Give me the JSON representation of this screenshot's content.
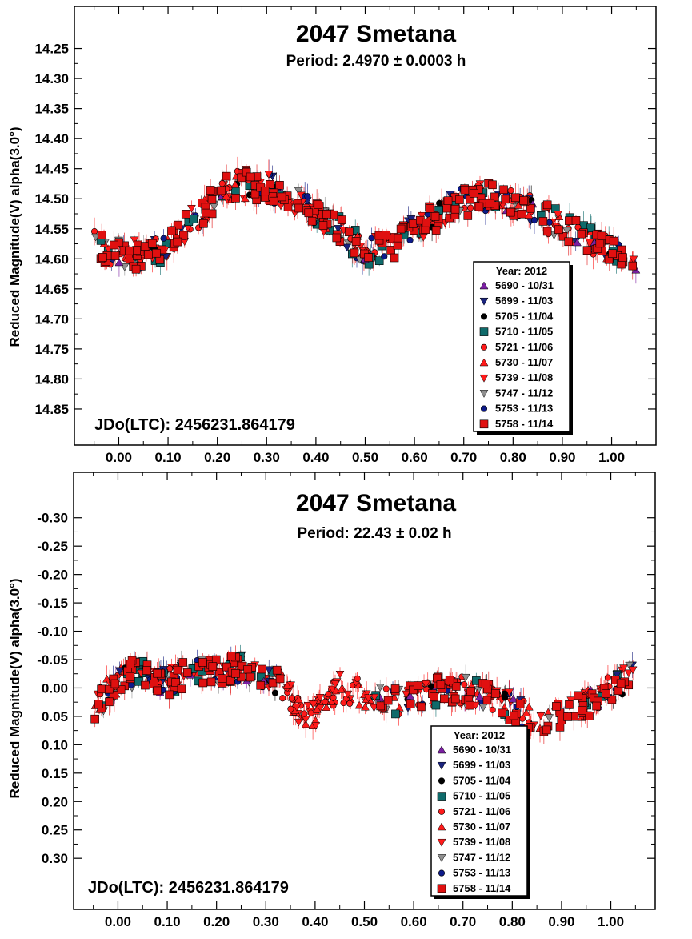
{
  "chart_data": [
    {
      "type": "scatter",
      "title": "2047 Smetana",
      "subtitle": "Period: 2.4970 ± 0.0003 h",
      "ylabel": "Reduced Magnitude(V) alpha(3.0°)",
      "xlabel": "",
      "annotation": "JDo(LTC): 2456231.864179",
      "xlim": [
        -0.09,
        1.09
      ],
      "ylim": [
        14.91,
        14.18
      ],
      "y_inverted": true,
      "x_ticks": [
        "0.00",
        "0.10",
        "0.20",
        "0.30",
        "0.40",
        "0.50",
        "0.60",
        "0.70",
        "0.80",
        "0.90",
        "1.00"
      ],
      "y_ticks": [
        "14.25",
        "14.30",
        "14.35",
        "14.40",
        "14.45",
        "14.50",
        "14.55",
        "14.60",
        "14.65",
        "14.70",
        "14.75",
        "14.80",
        "14.85"
      ],
      "legend_position": "bottom-right",
      "legend": {
        "title": "Year: 2012",
        "entries": [
          {
            "label": "5690 - 10/31",
            "marker": "triangle-up",
            "color": "#7b1fa2"
          },
          {
            "label": "5699 - 11/03",
            "marker": "triangle-down",
            "color": "#1a237e"
          },
          {
            "label": "5705 - 11/04",
            "marker": "circle",
            "color": "#000000"
          },
          {
            "label": "5710 - 11/05",
            "marker": "square",
            "color": "#0f6b6b"
          },
          {
            "label": "5721 - 11/06",
            "marker": "circle",
            "color": "#ff1a1a"
          },
          {
            "label": "5730 - 11/07",
            "marker": "triangle-up",
            "color": "#ff1a1a"
          },
          {
            "label": "5739 - 11/08",
            "marker": "triangle-down",
            "color": "#ff1a1a"
          },
          {
            "label": "5747 - 11/12",
            "marker": "triangle-down",
            "color": "#909090"
          },
          {
            "label": "5753 - 11/13",
            "marker": "circle",
            "color": "#0d1a8a"
          },
          {
            "label": "5758 - 11/14",
            "marker": "square",
            "color": "#e01010"
          }
        ]
      },
      "curve": [
        [
          -0.05,
          14.575
        ],
        [
          0.0,
          14.59
        ],
        [
          0.05,
          14.595
        ],
        [
          0.1,
          14.575
        ],
        [
          0.15,
          14.535
        ],
        [
          0.2,
          14.495
        ],
        [
          0.25,
          14.475
        ],
        [
          0.3,
          14.48
        ],
        [
          0.35,
          14.5
        ],
        [
          0.4,
          14.525
        ],
        [
          0.45,
          14.555
        ],
        [
          0.5,
          14.585
        ],
        [
          0.55,
          14.58
        ],
        [
          0.6,
          14.555
        ],
        [
          0.65,
          14.525
        ],
        [
          0.7,
          14.505
        ],
        [
          0.75,
          14.495
        ],
        [
          0.8,
          14.505
        ],
        [
          0.85,
          14.525
        ],
        [
          0.9,
          14.545
        ],
        [
          0.95,
          14.565
        ],
        [
          1.0,
          14.59
        ],
        [
          1.05,
          14.595
        ]
      ],
      "scatter": 0.025
    },
    {
      "type": "scatter",
      "title": "2047 Smetana",
      "subtitle": "Period: 22.43 ± 0.02 h",
      "ylabel": "Reduced Magnitude(V) alpha(3.0°)",
      "xlabel": "",
      "annotation": "JDo(LTC): 2456231.864179",
      "xlim": [
        -0.09,
        1.09
      ],
      "ylim": [
        0.39,
        -0.38
      ],
      "y_inverted": true,
      "x_ticks": [
        "0.00",
        "0.10",
        "0.20",
        "0.30",
        "0.40",
        "0.50",
        "0.60",
        "0.70",
        "0.80",
        "0.90",
        "1.00"
      ],
      "y_ticks": [
        "-0.30",
        "-0.25",
        "-0.20",
        "-0.15",
        "-0.10",
        "-0.05",
        "0.00",
        "0.05",
        "0.10",
        "0.15",
        "0.20",
        "0.25",
        "0.30"
      ],
      "legend_position": "bottom-right",
      "legend": {
        "title": "Year: 2012",
        "entries": [
          {
            "label": "5690 - 10/31",
            "marker": "triangle-up",
            "color": "#7b1fa2"
          },
          {
            "label": "5699 - 11/03",
            "marker": "triangle-down",
            "color": "#1a237e"
          },
          {
            "label": "5705 - 11/04",
            "marker": "circle",
            "color": "#000000"
          },
          {
            "label": "5710 - 11/05",
            "marker": "square",
            "color": "#0f6b6b"
          },
          {
            "label": "5721 - 11/06",
            "marker": "circle",
            "color": "#ff1a1a"
          },
          {
            "label": "5730 - 11/07",
            "marker": "triangle-up",
            "color": "#ff1a1a"
          },
          {
            "label": "5739 - 11/08",
            "marker": "triangle-down",
            "color": "#ff1a1a"
          },
          {
            "label": "5747 - 11/12",
            "marker": "triangle-down",
            "color": "#909090"
          },
          {
            "label": "5753 - 11/13",
            "marker": "circle",
            "color": "#0d1a8a"
          },
          {
            "label": "5758 - 11/14",
            "marker": "square",
            "color": "#e01010"
          }
        ]
      },
      "curve": [
        [
          -0.05,
          0.04
        ],
        [
          -0.02,
          0.005
        ],
        [
          0.0,
          -0.015
        ],
        [
          0.05,
          -0.03
        ],
        [
          0.1,
          -0.01
        ],
        [
          0.15,
          -0.03
        ],
        [
          0.2,
          -0.03
        ],
        [
          0.25,
          -0.035
        ],
        [
          0.3,
          -0.015
        ],
        [
          0.33,
          -0.005
        ],
        [
          0.36,
          0.03
        ],
        [
          0.38,
          0.05
        ],
        [
          0.4,
          0.045
        ],
        [
          0.42,
          0.015
        ],
        [
          0.45,
          0.0
        ],
        [
          0.5,
          0.01
        ],
        [
          0.55,
          0.025
        ],
        [
          0.6,
          0.02
        ],
        [
          0.65,
          0.005
        ],
        [
          0.7,
          0.005
        ],
        [
          0.75,
          0.01
        ],
        [
          0.8,
          0.035
        ],
        [
          0.85,
          0.06
        ],
        [
          0.9,
          0.05
        ],
        [
          0.95,
          0.03
        ],
        [
          1.0,
          0.0
        ],
        [
          1.05,
          -0.03
        ]
      ],
      "scatter": 0.025
    }
  ]
}
